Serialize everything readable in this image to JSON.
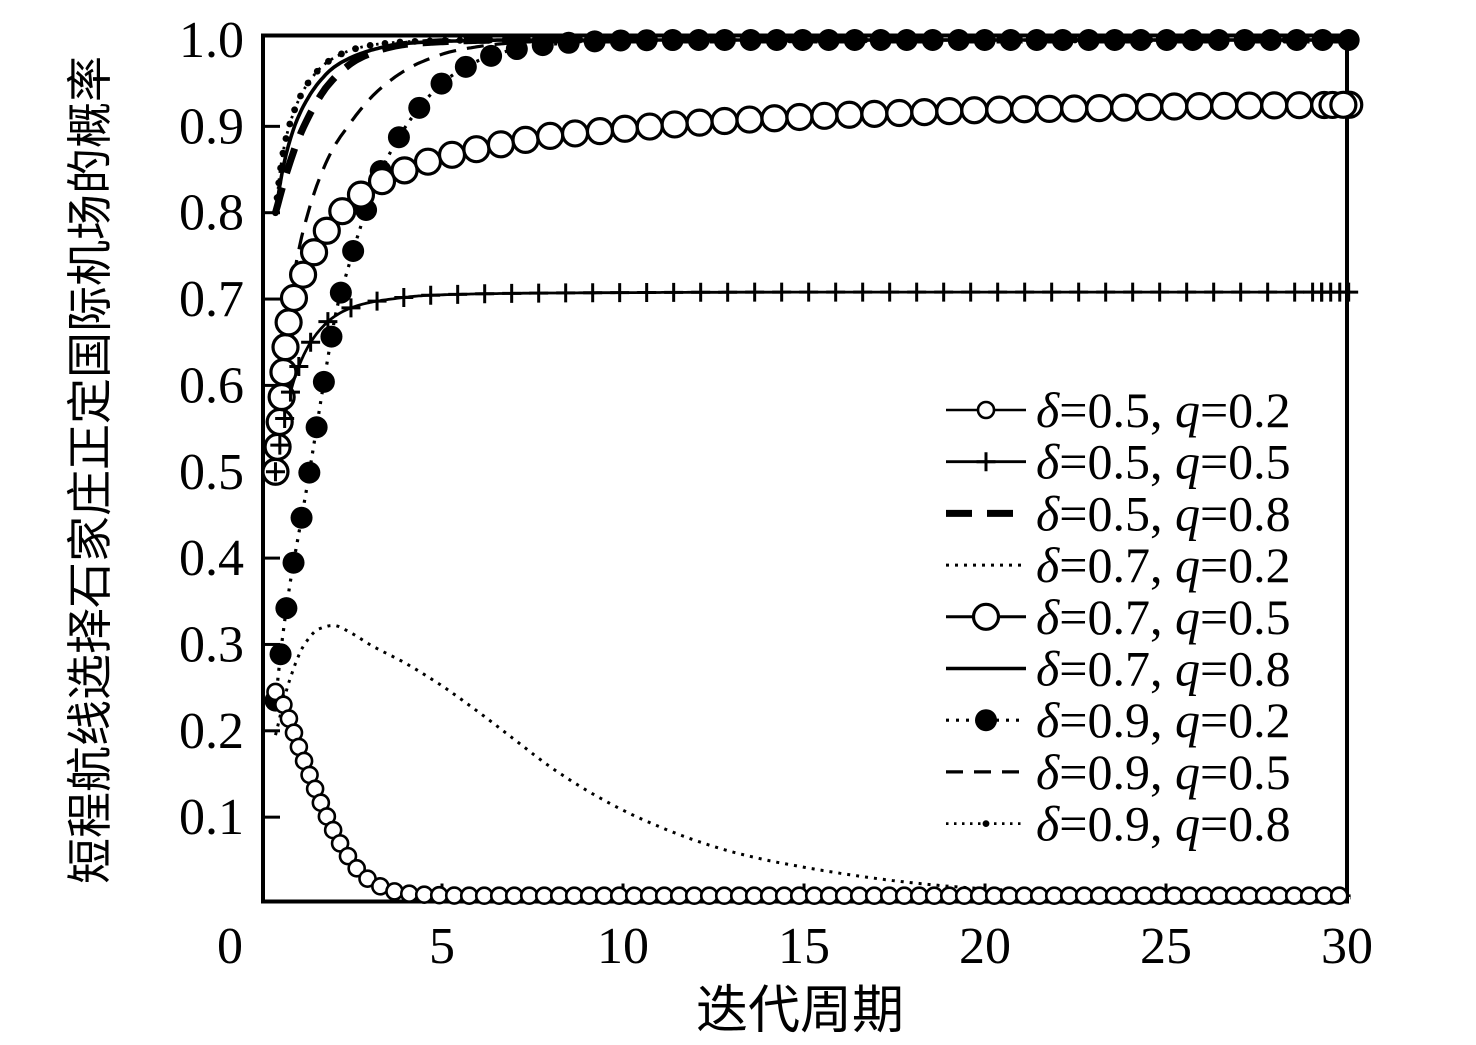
{
  "figure": {
    "background": "#ffffff",
    "ink": "#000000"
  },
  "chart_data": {
    "type": "line",
    "title": "",
    "xlabel": "迭代周期",
    "ylabel": "短程航线选择石家庄正定国际机场的概率",
    "xlim": [
      0,
      30
    ],
    "ylim": [
      0,
      1.0
    ],
    "grid": false,
    "legend_position": "inside lower-right",
    "xticks": {
      "values": [
        0,
        5,
        10,
        15,
        20,
        25,
        30
      ],
      "labels": [
        "0",
        "5",
        "10",
        "15",
        "20",
        "25",
        "30"
      ]
    },
    "yticks": {
      "values": [
        0.1,
        0.2,
        0.3,
        0.4,
        0.5,
        0.6,
        0.7,
        0.8,
        0.9,
        1.0
      ],
      "labels": [
        "0.1",
        "0.2",
        "0.3",
        "0.4",
        "0.5",
        "0.6",
        "0.7",
        "0.8",
        "0.9",
        "1.0"
      ]
    },
    "legend": {
      "var_delta": "δ",
      "var_q": "q",
      "items": [
        {
          "label": "δ=0.5, q=0.2",
          "delta_text": "=0.5, ",
          "q_text": "=0.2",
          "series": 0
        },
        {
          "label": "δ=0.5, q=0.5",
          "delta_text": "=0.5, ",
          "q_text": "=0.5",
          "series": 1
        },
        {
          "label": "δ=0.5, q=0.8",
          "delta_text": "=0.5, ",
          "q_text": "=0.8",
          "series": 2
        },
        {
          "label": "δ=0.7, q=0.2",
          "delta_text": "=0.7, ",
          "q_text": "=0.2",
          "series": 3
        },
        {
          "label": "δ=0.7, q=0.5",
          "delta_text": "=0.7, ",
          "q_text": "=0.5",
          "series": 4
        },
        {
          "label": "δ=0.7, q=0.8",
          "delta_text": "=0.7, ",
          "q_text": "=0.8",
          "series": 5
        },
        {
          "label": "δ=0.9, q=0.2",
          "delta_text": "=0.9, ",
          "q_text": "=0.2",
          "series": 6
        },
        {
          "label": "δ=0.9, q=0.5",
          "delta_text": "=0.9, ",
          "q_text": "=0.5",
          "series": 7
        },
        {
          "label": "δ=0.9, q=0.8",
          "delta_text": "=0.9, ",
          "q_text": "=0.8",
          "series": 8
        }
      ]
    },
    "series": [
      {
        "id": "d05-q02",
        "label": "δ=0.5, q=0.2",
        "line": "solid",
        "width": 2.6,
        "dash": "",
        "marker": "open-circle",
        "msize": 8,
        "mstroke": 2.6,
        "mspace": 15,
        "ywt": 1,
        "extra_marker_x": [],
        "points": [
          [
            0.4,
            0.245
          ],
          [
            0.6,
            0.232
          ],
          [
            0.85,
            0.205
          ],
          [
            1.1,
            0.175
          ],
          [
            1.35,
            0.148
          ],
          [
            1.6,
            0.122
          ],
          [
            1.85,
            0.098
          ],
          [
            2.1,
            0.076
          ],
          [
            2.4,
            0.055
          ],
          [
            2.7,
            0.038
          ],
          [
            3.0,
            0.027
          ],
          [
            3.4,
            0.018
          ],
          [
            3.8,
            0.013
          ],
          [
            4.2,
            0.011
          ],
          [
            5.0,
            0.0095
          ],
          [
            6.0,
            0.009
          ],
          [
            10,
            0.009
          ],
          [
            20,
            0.009
          ],
          [
            30.1,
            0.009
          ]
        ]
      },
      {
        "id": "d05-q05",
        "label": "δ=0.5, q=0.5",
        "line": "solid",
        "width": 2.8,
        "dash": "",
        "marker": "plus",
        "msize": 9.5,
        "mstroke": 3,
        "mspace": 27,
        "ywt": 1,
        "extra_marker_x": [
          29.05,
          29.3,
          29.55,
          29.8
        ],
        "points": [
          [
            0.4,
            0.5
          ],
          [
            0.6,
            0.55
          ],
          [
            0.8,
            0.59
          ],
          [
            1.0,
            0.617
          ],
          [
            1.3,
            0.645
          ],
          [
            1.6,
            0.663
          ],
          [
            2.0,
            0.679
          ],
          [
            2.5,
            0.69
          ],
          [
            3.0,
            0.696
          ],
          [
            3.6,
            0.7
          ],
          [
            4.5,
            0.704
          ],
          [
            6,
            0.706
          ],
          [
            8,
            0.707
          ],
          [
            15,
            0.708
          ],
          [
            30.1,
            0.708
          ]
        ]
      },
      {
        "id": "d05-q08",
        "label": "δ=0.5, q=0.8",
        "line": "dashed-thick",
        "width": 7,
        "dash": "26 15",
        "marker": "none",
        "msize": 0,
        "mstroke": 0,
        "mspace": 0,
        "ywt": 1,
        "extra_marker_x": [],
        "points": [
          [
            0.4,
            0.8
          ],
          [
            0.7,
            0.845
          ],
          [
            1.0,
            0.882
          ],
          [
            1.4,
            0.918
          ],
          [
            1.8,
            0.945
          ],
          [
            2.2,
            0.963
          ],
          [
            2.6,
            0.976
          ],
          [
            3.0,
            0.984
          ],
          [
            3.5,
            0.991
          ],
          [
            4.0,
            0.995
          ],
          [
            5.0,
            0.998
          ],
          [
            6.0,
            0.9995
          ],
          [
            8,
            1.0
          ],
          [
            30.1,
            1.0
          ]
        ]
      },
      {
        "id": "d07-q02",
        "label": "δ=0.7, q=0.2",
        "line": "dotted",
        "width": 3,
        "dash": "3 6",
        "marker": "none",
        "msize": 0,
        "mstroke": 0,
        "mspace": 0,
        "ywt": 1,
        "extra_marker_x": [],
        "points": [
          [
            0.4,
            0.195
          ],
          [
            0.8,
            0.26
          ],
          [
            1.2,
            0.3
          ],
          [
            1.6,
            0.318
          ],
          [
            2.0,
            0.322
          ],
          [
            2.5,
            0.313
          ],
          [
            3.0,
            0.3
          ],
          [
            4.0,
            0.278
          ],
          [
            5.0,
            0.252
          ],
          [
            6.0,
            0.222
          ],
          [
            7.0,
            0.19
          ],
          [
            8.0,
            0.158
          ],
          [
            9.0,
            0.131
          ],
          [
            10,
            0.108
          ],
          [
            11,
            0.089
          ],
          [
            12,
            0.073
          ],
          [
            13,
            0.06
          ],
          [
            14,
            0.05
          ],
          [
            15,
            0.042
          ],
          [
            16,
            0.035
          ],
          [
            17,
            0.029
          ],
          [
            18,
            0.024
          ],
          [
            19,
            0.02
          ],
          [
            20,
            0.017
          ],
          [
            22,
            0.0125
          ],
          [
            24,
            0.0095
          ],
          [
            26,
            0.008
          ],
          [
            28,
            0.007
          ],
          [
            30.1,
            0.0065
          ]
        ]
      },
      {
        "id": "d07-q05",
        "label": "δ=0.7, q=0.5",
        "line": "solid",
        "width": 3,
        "dash": "",
        "marker": "open-circle",
        "msize": 12.5,
        "mstroke": 3.2,
        "mspace": 25,
        "ywt": 1,
        "extra_marker_x": [
          29.6,
          29.9
        ],
        "points": [
          [
            0.4,
            0.5
          ],
          [
            0.55,
            0.575
          ],
          [
            0.7,
            0.655
          ],
          [
            0.9,
            0.7
          ],
          [
            1.15,
            0.727
          ],
          [
            1.45,
            0.753
          ],
          [
            1.8,
            0.778
          ],
          [
            2.1,
            0.795
          ],
          [
            2.5,
            0.812
          ],
          [
            3.0,
            0.828
          ],
          [
            3.6,
            0.842
          ],
          [
            4.2,
            0.853
          ],
          [
            5.0,
            0.864
          ],
          [
            6.0,
            0.874
          ],
          [
            7.0,
            0.882
          ],
          [
            8.0,
            0.889
          ],
          [
            9.0,
            0.893
          ],
          [
            10,
            0.897
          ],
          [
            12,
            0.904
          ],
          [
            14,
            0.909
          ],
          [
            16,
            0.913
          ],
          [
            18,
            0.916
          ],
          [
            20,
            0.919
          ],
          [
            23,
            0.921
          ],
          [
            26,
            0.9235
          ],
          [
            30.1,
            0.925
          ]
        ]
      },
      {
        "id": "d07-q08",
        "label": "δ=0.7, q=0.8",
        "line": "solid",
        "width": 3.6,
        "dash": "",
        "marker": "none",
        "msize": 0,
        "mstroke": 0,
        "mspace": 0,
        "ywt": 1,
        "extra_marker_x": [],
        "points": [
          [
            0.4,
            0.8
          ],
          [
            0.6,
            0.85
          ],
          [
            0.8,
            0.884
          ],
          [
            1.0,
            0.908
          ],
          [
            1.3,
            0.933
          ],
          [
            1.6,
            0.951
          ],
          [
            2.0,
            0.968
          ],
          [
            2.4,
            0.978
          ],
          [
            2.8,
            0.985
          ],
          [
            3.3,
            0.991
          ],
          [
            3.8,
            0.995
          ],
          [
            4.5,
            0.9975
          ],
          [
            5.5,
            0.999
          ],
          [
            7,
            1.0
          ],
          [
            30.1,
            1.0
          ]
        ]
      },
      {
        "id": "d09-q02",
        "label": "δ=0.9, q=0.2",
        "line": "dotted",
        "width": 3.2,
        "dash": "3 7",
        "marker": "filled-circle",
        "msize": 11,
        "mstroke": 0,
        "mspace": 26,
        "ywt": 0.55,
        "extra_marker_x": [],
        "points": [
          [
            0.4,
            0.235
          ],
          [
            0.6,
            0.31
          ],
          [
            0.8,
            0.37
          ],
          [
            1.05,
            0.43
          ],
          [
            1.3,
            0.49
          ],
          [
            1.55,
            0.555
          ],
          [
            1.8,
            0.62
          ],
          [
            2.1,
            0.69
          ],
          [
            2.4,
            0.735
          ],
          [
            2.8,
            0.79
          ],
          [
            3.2,
            0.838
          ],
          [
            3.6,
            0.872
          ],
          [
            4.0,
            0.9
          ],
          [
            4.5,
            0.928
          ],
          [
            5.0,
            0.95
          ],
          [
            5.5,
            0.965
          ],
          [
            6.0,
            0.976
          ],
          [
            7.0,
            0.989
          ],
          [
            8.0,
            0.995
          ],
          [
            9,
            0.998
          ],
          [
            10,
            0.9995
          ],
          [
            12,
            1.0
          ],
          [
            30.1,
            1.0
          ]
        ]
      },
      {
        "id": "d09-q05",
        "label": "δ=0.9, q=0.5",
        "line": "dashed",
        "width": 3.2,
        "dash": "17 11",
        "marker": "none",
        "msize": 0,
        "mstroke": 0,
        "mspace": 0,
        "ywt": 1,
        "extra_marker_x": [],
        "points": [
          [
            0.4,
            0.5
          ],
          [
            0.55,
            0.6
          ],
          [
            0.75,
            0.68
          ],
          [
            1.0,
            0.748
          ],
          [
            1.3,
            0.8
          ],
          [
            1.6,
            0.838
          ],
          [
            2.0,
            0.875
          ],
          [
            2.4,
            0.9
          ],
          [
            2.8,
            0.922
          ],
          [
            3.2,
            0.94
          ],
          [
            3.7,
            0.957
          ],
          [
            4.2,
            0.97
          ],
          [
            4.7,
            0.979
          ],
          [
            5.2,
            0.986
          ],
          [
            5.8,
            0.991
          ],
          [
            6.5,
            0.995
          ],
          [
            7.5,
            0.998
          ],
          [
            9,
            0.999
          ],
          [
            11,
            1.0
          ],
          [
            30.1,
            1.0
          ]
        ]
      },
      {
        "id": "d09-q08",
        "label": "δ=0.9, q=0.8",
        "line": "dotted",
        "width": 2.8,
        "dash": "2.5 5.5",
        "marker": "filled-circle",
        "msize": 3.4,
        "mstroke": 0,
        "mspace": 15,
        "ywt": 1,
        "extra_marker_x": [],
        "points": [
          [
            0.4,
            0.8
          ],
          [
            0.55,
            0.855
          ],
          [
            0.7,
            0.888
          ],
          [
            0.9,
            0.916
          ],
          [
            1.15,
            0.94
          ],
          [
            1.4,
            0.956
          ],
          [
            1.7,
            0.97
          ],
          [
            2.0,
            0.979
          ],
          [
            2.4,
            0.987
          ],
          [
            2.8,
            0.992
          ],
          [
            3.3,
            0.9955
          ],
          [
            4.0,
            0.998
          ],
          [
            5.0,
            0.9993
          ],
          [
            6.5,
            1.0
          ],
          [
            30.1,
            1.0
          ]
        ]
      }
    ]
  }
}
